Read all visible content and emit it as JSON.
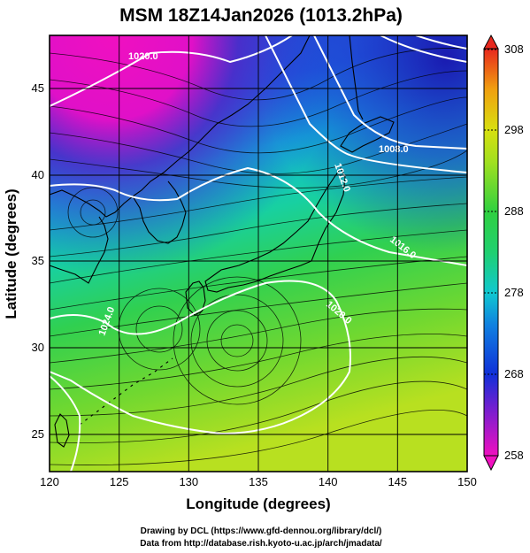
{
  "title": "MSM 18Z14Jan2026 (1013.2hPa)",
  "axes": {
    "xlabel": "Longitude (degrees)",
    "ylabel": "Latitude (degrees)",
    "xticks": [
      "120",
      "125",
      "130",
      "135",
      "140",
      "145",
      "150"
    ],
    "yticks": [
      "25",
      "30",
      "35",
      "40",
      "45"
    ],
    "xrange": [
      120,
      150
    ],
    "yrange": [
      22.4,
      47.6
    ]
  },
  "colorbar": {
    "ticks": [
      "308",
      "298",
      "288",
      "278",
      "268",
      "258"
    ],
    "range": [
      258,
      308
    ],
    "colors": {
      "308": "#e8281e",
      "298": "#d8e010",
      "288": "#30d040",
      "278": "#10c8d0",
      "268": "#1030d8",
      "258": "#f010c0"
    }
  },
  "contours": {
    "labels": [
      "1020.0",
      "1012.0",
      "1008.0",
      "1016.0",
      "1020.0",
      "1024.0"
    ]
  },
  "credits": {
    "line1": "Drawing by DCL (https://www.gfd-dennou.org/library/dcl/)",
    "line2": "Data from http://database.rish.kyoto-u.ac.jp/arch/jmadata/"
  }
}
